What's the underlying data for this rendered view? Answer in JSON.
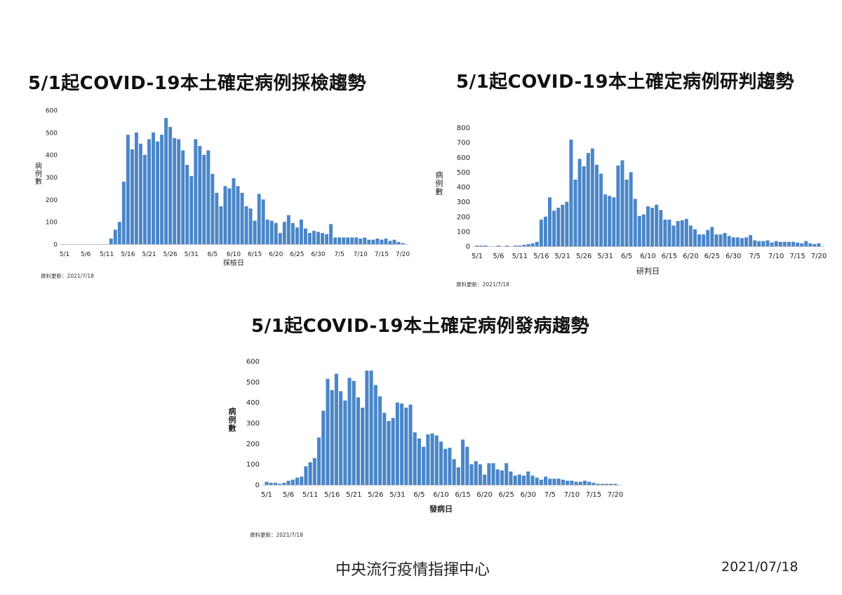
{
  "footer": {
    "organization": "中央流行疫情指揮中心",
    "date": "2021/07/18"
  },
  "chart_data": [
    {
      "type": "bar",
      "title": "5/1起COVID-19本土確定病例採檢趨勢",
      "xlabel": "採檢日",
      "ylabel": "病例數",
      "ylim": [
        0,
        600
      ],
      "yticks": [
        "0",
        "100",
        "200",
        "300",
        "400",
        "500",
        "600"
      ],
      "xticks": [
        "5/1",
        "5/6",
        "5/11",
        "5/16",
        "5/21",
        "5/26",
        "5/31",
        "6/5",
        "6/10",
        "6/15",
        "6/20",
        "6/25",
        "6/30",
        "7/5",
        "7/10",
        "7/15",
        "7/20"
      ],
      "grid": false,
      "bar_color": "#4a86c8",
      "note": "資料更新：2021/7/18",
      "values": [
        0,
        0,
        0,
        0,
        0,
        0,
        0,
        0,
        0,
        0,
        0,
        25,
        65,
        100,
        280,
        490,
        425,
        500,
        450,
        400,
        470,
        500,
        460,
        490,
        565,
        525,
        475,
        470,
        420,
        355,
        305,
        470,
        440,
        400,
        420,
        315,
        230,
        170,
        260,
        250,
        295,
        260,
        230,
        170,
        160,
        105,
        225,
        200,
        110,
        105,
        95,
        50,
        100,
        130,
        95,
        75,
        110,
        70,
        50,
        60,
        55,
        50,
        45,
        90,
        30,
        30,
        30,
        30,
        30,
        30,
        25,
        30,
        20,
        20,
        25,
        20,
        25,
        15,
        20,
        10,
        5
      ]
    },
    {
      "type": "bar",
      "title": "5/1起COVID-19本土確定病例研判趨勢",
      "xlabel": "研判日",
      "ylabel": "病例數",
      "ylim": [
        0,
        800
      ],
      "yticks": [
        "0",
        "100",
        "200",
        "300",
        "400",
        "500",
        "600",
        "700",
        "800"
      ],
      "xticks": [
        "5/1",
        "5/6",
        "5/11",
        "5/16",
        "5/21",
        "5/26",
        "5/31",
        "6/5",
        "6/10",
        "6/15",
        "6/20",
        "6/25",
        "6/30",
        "7/5",
        "7/10",
        "7/15",
        "7/20"
      ],
      "grid": false,
      "bar_color": "#4a86c8",
      "note": "資料更新：2021/7/18",
      "values": [
        5,
        5,
        5,
        0,
        0,
        5,
        0,
        5,
        0,
        5,
        5,
        10,
        15,
        20,
        30,
        180,
        200,
        330,
        240,
        260,
        280,
        300,
        720,
        450,
        590,
        540,
        630,
        660,
        550,
        490,
        350,
        340,
        330,
        545,
        580,
        450,
        500,
        320,
        205,
        215,
        270,
        260,
        280,
        245,
        180,
        180,
        140,
        170,
        175,
        185,
        140,
        115,
        80,
        80,
        110,
        130,
        80,
        80,
        90,
        70,
        60,
        60,
        55,
        60,
        75,
        40,
        35,
        35,
        40,
        25,
        35,
        30,
        30,
        30,
        30,
        25,
        20,
        35,
        20,
        15,
        20
      ]
    },
    {
      "type": "bar",
      "title": "5/1起COVID-19本土確定病例發病趨勢",
      "xlabel": "發病日",
      "ylabel": "病例數",
      "ylim": [
        0,
        600
      ],
      "yticks": [
        "0",
        "100",
        "200",
        "300",
        "400",
        "500",
        "600"
      ],
      "xticks": [
        "5/1",
        "5/6",
        "5/11",
        "5/16",
        "5/21",
        "5/26",
        "5/31",
        "6/5",
        "6/10",
        "6/15",
        "6/20",
        "6/25",
        "6/30",
        "7/5",
        "7/10",
        "7/15",
        "7/20"
      ],
      "grid": false,
      "bar_color": "#4a86c8",
      "note": "資料更新：2021/7/18",
      "values": [
        15,
        10,
        10,
        5,
        10,
        20,
        25,
        35,
        40,
        90,
        110,
        130,
        230,
        360,
        515,
        460,
        540,
        455,
        410,
        520,
        505,
        425,
        375,
        555,
        555,
        485,
        430,
        350,
        310,
        325,
        400,
        395,
        375,
        390,
        255,
        225,
        185,
        245,
        250,
        240,
        210,
        175,
        180,
        125,
        85,
        220,
        185,
        100,
        115,
        100,
        50,
        105,
        105,
        75,
        70,
        105,
        65,
        45,
        50,
        45,
        65,
        45,
        35,
        25,
        40,
        30,
        30,
        30,
        25,
        20,
        20,
        15,
        15,
        20,
        15,
        10,
        5,
        5,
        5,
        5,
        5
      ]
    }
  ]
}
